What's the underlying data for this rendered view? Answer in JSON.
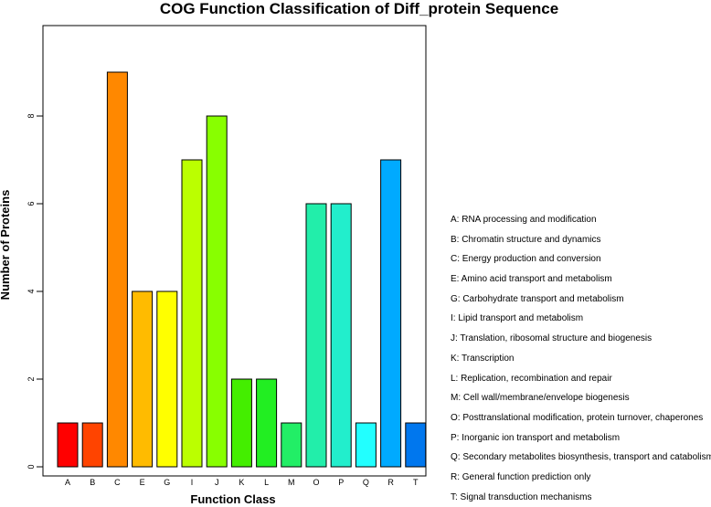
{
  "chart_data": {
    "type": "bar",
    "title": "COG Function Classification of Diff_protein Sequence",
    "xlabel": "Function Class",
    "ylabel": "Number of Proteins",
    "ylim": [
      0,
      9.7
    ],
    "yticks": [
      0,
      2,
      4,
      6,
      8
    ],
    "grid": false,
    "categories": [
      "A",
      "B",
      "C",
      "E",
      "G",
      "I",
      "J",
      "K",
      "L",
      "M",
      "O",
      "P",
      "Q",
      "R",
      "T"
    ],
    "values": [
      1,
      1,
      9,
      4,
      4,
      7,
      8,
      2,
      2,
      1,
      6,
      6,
      1,
      7,
      1
    ],
    "colors": [
      "#FF0000",
      "#FF4400",
      "#FF8800",
      "#FFBB00",
      "#FFFF00",
      "#BBFF00",
      "#88FF00",
      "#44EE00",
      "#22EE22",
      "#22EE66",
      "#22EEAA",
      "#22EECC",
      "#22FFFF",
      "#00AAFF",
      "#0077EE"
    ],
    "legend_position": "right",
    "legend": [
      "A: RNA processing and modification",
      "B: Chromatin structure and dynamics",
      "C: Energy production and conversion",
      "E: Amino acid transport and metabolism",
      "G: Carbohydrate transport and metabolism",
      "I: Lipid transport and metabolism",
      "J: Translation, ribosomal structure and biogenesis",
      "K: Transcription",
      "L: Replication, recombination and repair",
      "M: Cell wall/membrane/envelope biogenesis",
      "O: Posttranslational modification, protein turnover, chaperones",
      "P: Inorganic ion transport and metabolism",
      "Q: Secondary metabolites biosynthesis, transport and catabolism",
      "R: General function prediction only",
      "T: Signal transduction mechanisms"
    ]
  }
}
